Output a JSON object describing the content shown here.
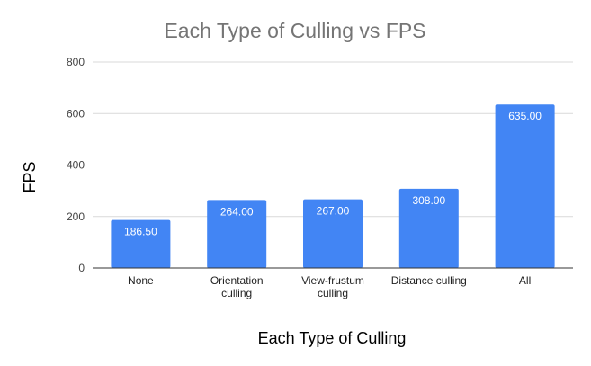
{
  "chart_data": {
    "type": "bar",
    "title": "Each Type of Culling vs FPS",
    "xlabel": "Each Type of Culling",
    "ylabel": "FPS",
    "categories": [
      [
        "None"
      ],
      [
        "Orientation",
        "culling"
      ],
      [
        "View-frustum",
        "culling"
      ],
      [
        "Distance culling"
      ],
      [
        "All"
      ]
    ],
    "values": [
      186.5,
      264.0,
      267.0,
      308.0,
      635.0
    ],
    "data_labels": [
      "186.50",
      "264.00",
      "267.00",
      "308.00",
      "635.00"
    ],
    "yticks": [
      "0",
      "200",
      "400",
      "600",
      "800"
    ],
    "ylim": [
      0,
      800
    ],
    "grid": true,
    "legend": "none",
    "bar_color": "#4285f4",
    "gridline_color": "#d9d9d9",
    "axis_color": "#333333"
  }
}
